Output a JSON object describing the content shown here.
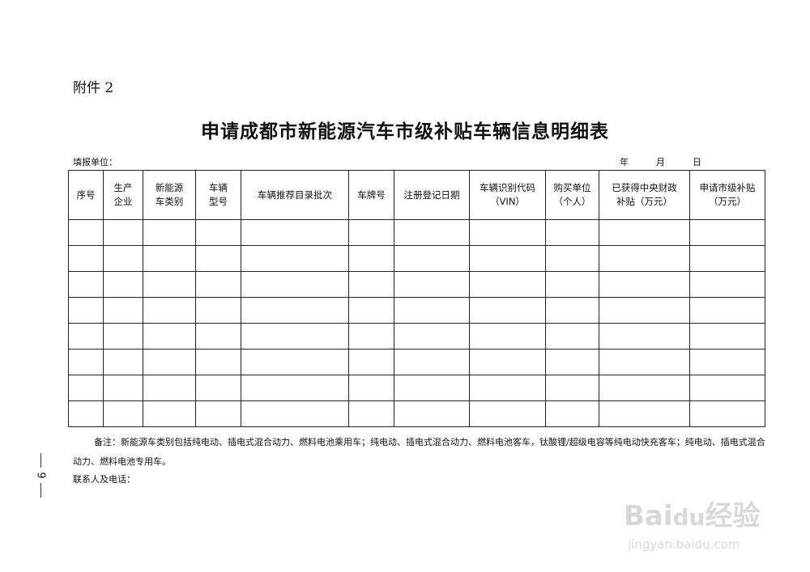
{
  "attachment": "附件 2",
  "title": "申请成都市新能源汽车市级补贴车辆信息明细表",
  "fill_unit": "填报单位：",
  "date": {
    "year": "年",
    "month": "月",
    "day": "日"
  },
  "columns": [
    [
      "序号",
      ""
    ],
    [
      "生产",
      "企业"
    ],
    [
      "新能源",
      "车类别"
    ],
    [
      "车辆",
      "型号"
    ],
    [
      "车辆推荐目录批次",
      ""
    ],
    [
      "车牌号",
      ""
    ],
    [
      "注册登记日期",
      ""
    ],
    [
      "车辆识别代码",
      "（VIN）"
    ],
    [
      "购买单位",
      "（个人）"
    ],
    [
      "已获得中央财政",
      "补贴（万元）"
    ],
    [
      "申请市级补贴",
      "（万元）"
    ]
  ],
  "row_count": 8,
  "note": "备注：新能源车类别包括纯电动、插电式混合动力、燃料电池乘用车；纯电动、插电式混合动力、燃料电池客车，钛酸锂/超级电容等纯电动快充客车；纯电动、插电式混合动力、燃料电池专用车。",
  "contact": "联系人及电话：",
  "page_number": "9",
  "watermark": {
    "logo": "Baidu经验",
    "url": "jingyan.baidu.com"
  }
}
